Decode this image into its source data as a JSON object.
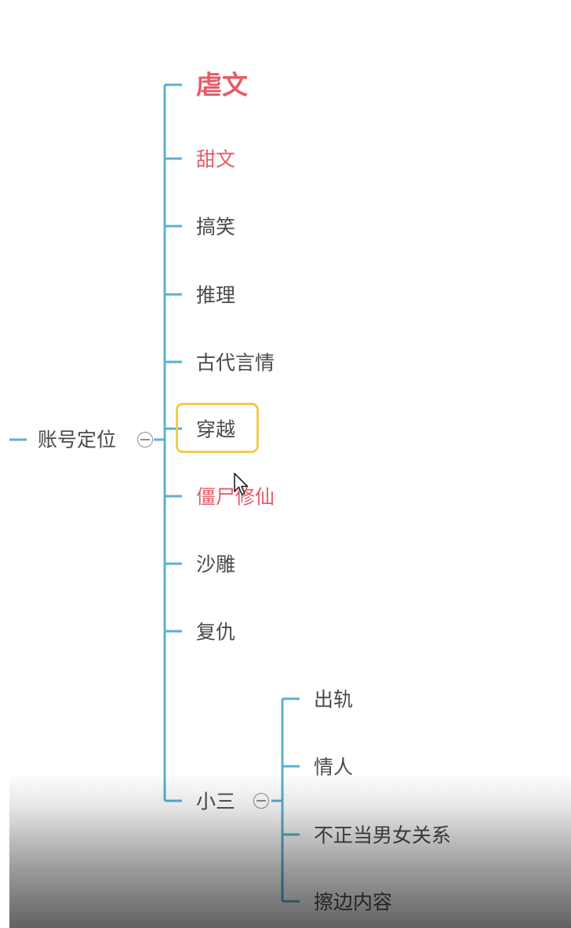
{
  "mind_map": {
    "root": {
      "label": "账号定位",
      "collapse_icon": "circle-minus-icon"
    },
    "branches": [
      {
        "label": "虐文",
        "color": "#e45d6b",
        "bold": true
      },
      {
        "label": "甜文",
        "color": "#e45d6b"
      },
      {
        "label": "搞笑",
        "color": "#4a4a4a"
      },
      {
        "label": "推理",
        "color": "#4a4a4a"
      },
      {
        "label": "古代言情",
        "color": "#4a4a4a"
      },
      {
        "label": "穿越",
        "color": "#4a4a4a",
        "selected": true
      },
      {
        "label": "僵尸修仙",
        "color": "#e45d6b"
      },
      {
        "label": "沙雕",
        "color": "#4a4a4a"
      },
      {
        "label": "复仇",
        "color": "#4a4a4a"
      },
      {
        "label": "小三",
        "color": "#4a4a4a",
        "collapse_icon": "circle-minus-icon",
        "children": [
          {
            "label": "出轨"
          },
          {
            "label": "情人"
          },
          {
            "label": "不正当男女关系"
          },
          {
            "label": "擦边内容"
          }
        ]
      }
    ],
    "colors": {
      "connector": "#5bb0d0",
      "selection": "#f3ca50",
      "text": "#4a4a4a",
      "highlight": "#e45d6b"
    },
    "cursor": "arrow-cursor-icon"
  }
}
